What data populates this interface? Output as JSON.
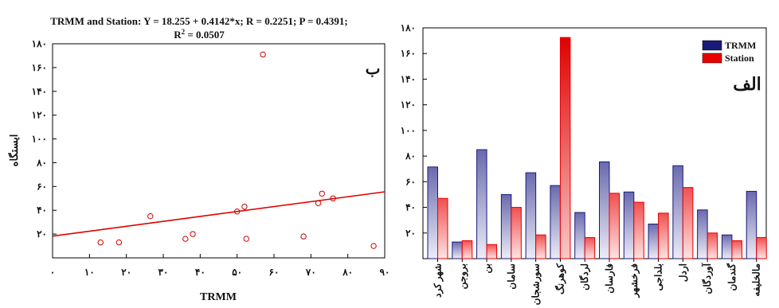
{
  "chart_data": [
    {
      "type": "scatter",
      "panel_label": "ب",
      "header_line1": "TRMM and Station:   Y = 18.255 + 0.4142*x;  R = 0.2251; P = 0.4391;",
      "header_line2_prefix": "R",
      "header_line2_sup": "2",
      "header_line2_suffix": " = 0.0507",
      "xlabel": "TRMM",
      "ylabel": "ایستگاه",
      "xlim": [
        0,
        90
      ],
      "ylim": [
        0,
        180
      ],
      "x_ticks": [
        0,
        10,
        20,
        30,
        40,
        50,
        60,
        70,
        80,
        90
      ],
      "x_tick_labels": [
        "۰",
        "۱۰",
        "۲۰",
        "۳۰",
        "۴۰",
        "۵۰",
        "۶۰",
        "۷۰",
        "۸۰",
        "۹۰"
      ],
      "y_ticks": [
        20,
        40,
        60,
        80,
        100,
        120,
        140,
        160,
        180
      ],
      "y_tick_labels": [
        "۲۰",
        "۴۰",
        "۶۰",
        "۸۰",
        "۱۰۰",
        "۱۲۰",
        "۱۴۰",
        "۱۶۰",
        "۱۸۰"
      ],
      "regression": {
        "intercept": 18.255,
        "slope": 0.4142
      },
      "point_color": "#cc0000",
      "line_color": "#e00000",
      "points": [
        {
          "x": 13,
          "y": 13
        },
        {
          "x": 18,
          "y": 13
        },
        {
          "x": 26.5,
          "y": 35
        },
        {
          "x": 36,
          "y": 16
        },
        {
          "x": 38,
          "y": 20
        },
        {
          "x": 50,
          "y": 39
        },
        {
          "x": 52,
          "y": 43
        },
        {
          "x": 52.5,
          "y": 16
        },
        {
          "x": 57,
          "y": 171
        },
        {
          "x": 68,
          "y": 18
        },
        {
          "x": 72,
          "y": 46
        },
        {
          "x": 73,
          "y": 54
        },
        {
          "x": 76,
          "y": 50
        },
        {
          "x": 87,
          "y": 10
        }
      ]
    },
    {
      "type": "bar",
      "panel_label": "الف",
      "ylim": [
        0,
        180
      ],
      "y_ticks": [
        20,
        40,
        60,
        80,
        100,
        120,
        140,
        160,
        180
      ],
      "y_tick_labels": [
        "۲۰",
        "۴۰",
        "۶۰",
        "۸۰",
        "۱۰۰",
        "۱۲۰",
        "۱۴۰",
        "۱۶۰",
        "۱۸۰"
      ],
      "categories": [
        "شهر کرد",
        "بروجن",
        "بن",
        "سامان",
        "سورشجان",
        "کوهرنگ",
        "لردگان",
        "فارسان",
        "فرخشهر",
        "بلداجی",
        "اردل",
        "آوردگان",
        "گندمان",
        "مالخلیفه"
      ],
      "series": [
        {
          "name": "TRMM",
          "color": "#1a1a7a",
          "light": "#e4e4f4",
          "values": [
            71.5,
            13,
            85,
            50,
            67,
            57,
            36,
            75.5,
            52,
            27,
            72.5,
            38,
            18.5,
            52.5
          ]
        },
        {
          "name": "Station",
          "color": "#e80000",
          "light": "#fbe0e0",
          "values": [
            47,
            14,
            11,
            40,
            18.5,
            172.5,
            16.5,
            51,
            44,
            35.5,
            55.5,
            20,
            14,
            16.5
          ]
        }
      ]
    }
  ]
}
